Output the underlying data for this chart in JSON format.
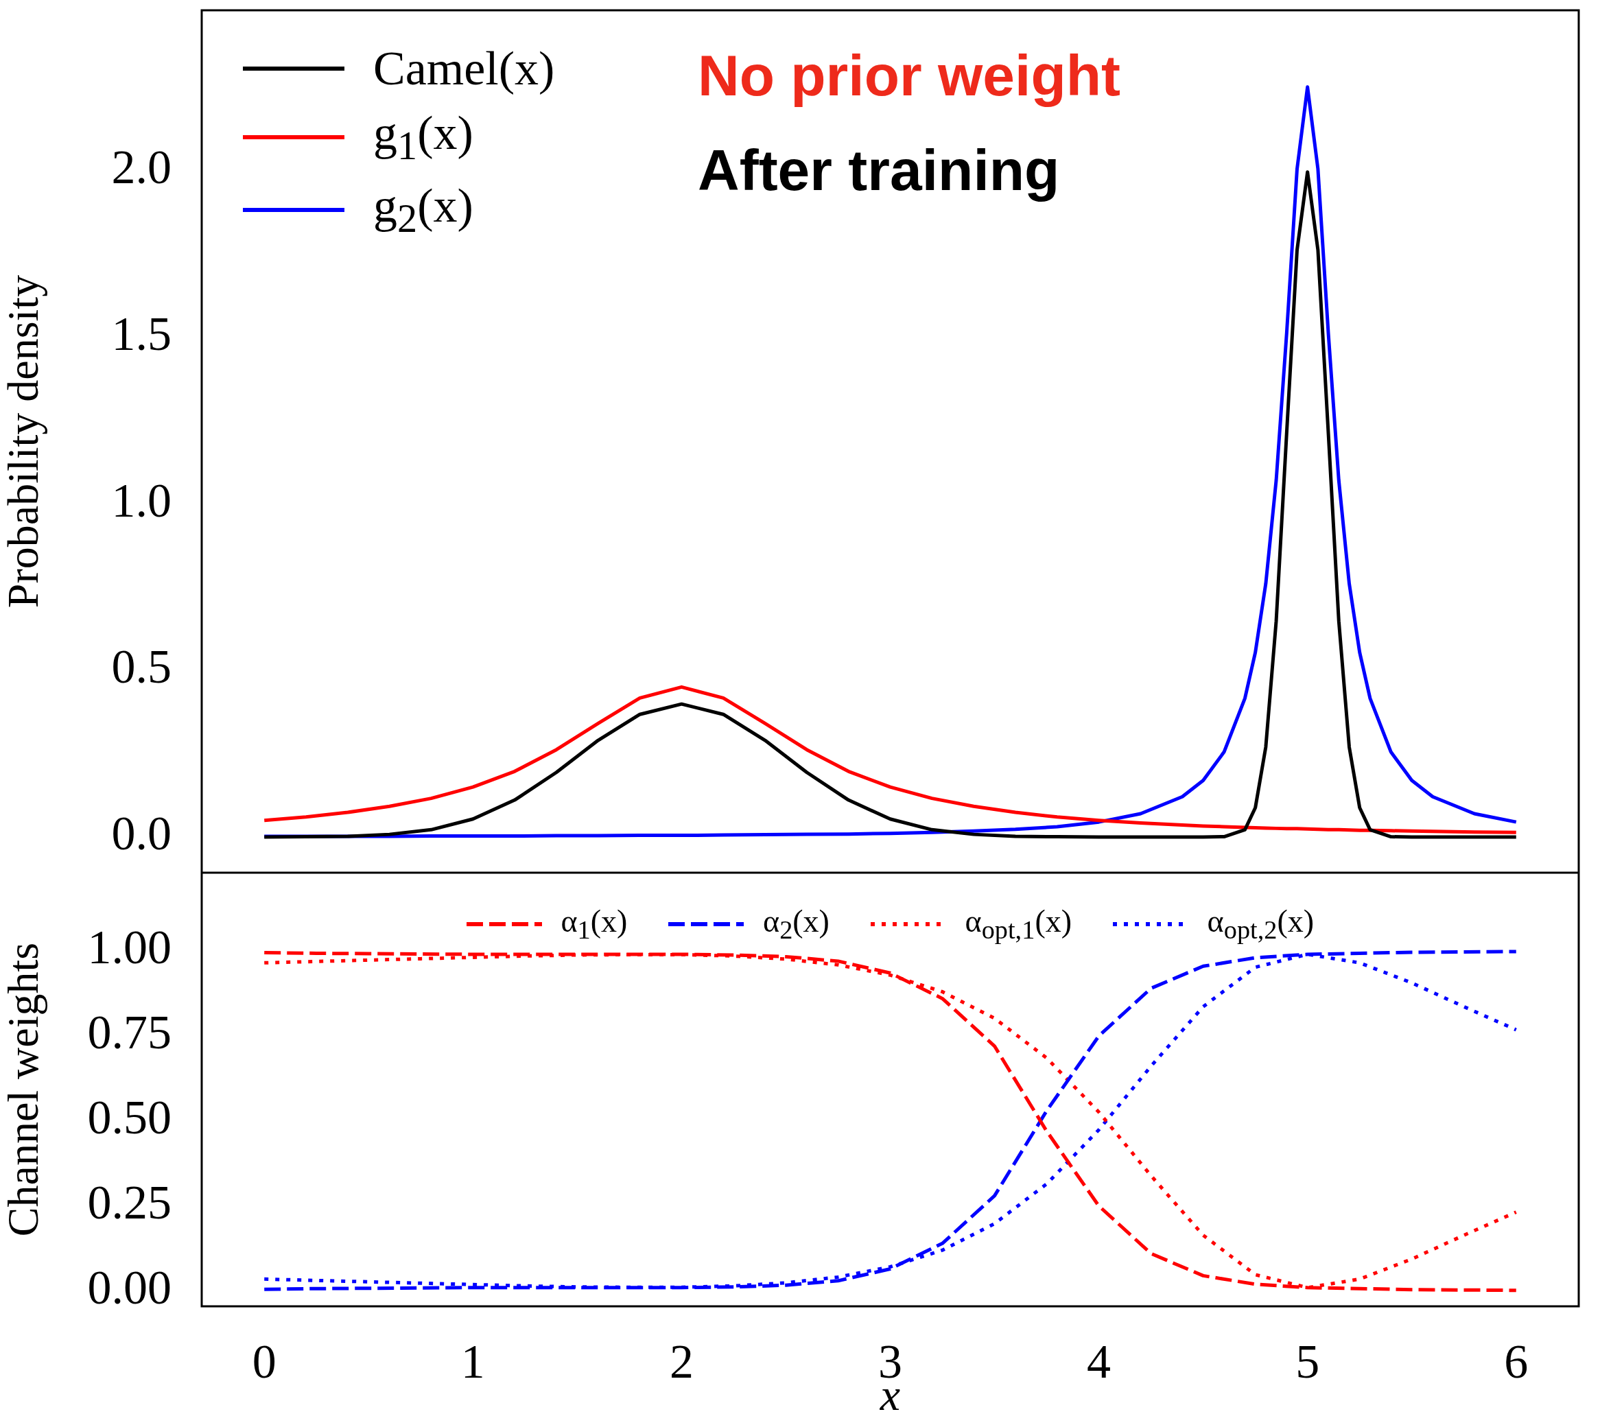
{
  "chart_data": [
    {
      "type": "line",
      "ylabel": "Probability density",
      "legend": "top left",
      "tick_labels": "y",
      "grid": false,
      "marker": "none",
      "annotations": [
        "No prior weight",
        "After training"
      ],
      "xlim": [
        -0.3,
        6.3
      ],
      "ylim": [
        -0.107,
        2.48
      ],
      "xticks": [
        0,
        1,
        2,
        3,
        4,
        5,
        6
      ],
      "yticks": [
        {
          "value": 0,
          "label": "0.0"
        },
        {
          "value": 0.5,
          "label": "0.5"
        },
        {
          "value": 1,
          "label": "1.0"
        },
        {
          "value": 1.5,
          "label": "1.5"
        },
        {
          "value": 2,
          "label": "2.0"
        }
      ],
      "x": [
        0,
        0.2,
        0.4,
        0.6,
        0.8,
        1.0,
        1.2,
        1.4,
        1.6,
        1.8,
        2.0,
        2.2,
        2.4,
        2.6,
        2.8,
        3.0,
        3.2,
        3.4,
        3.6,
        3.8,
        4.0,
        4.2,
        4.4,
        4.5,
        4.6,
        4.7,
        4.75,
        4.8,
        4.85,
        4.9,
        4.95,
        5.0,
        5.05,
        5.1,
        5.15,
        5.2,
        5.25,
        5.3,
        5.4,
        5.5,
        5.6,
        5.8,
        6.0
      ],
      "series": [
        {
          "name": "Camel(x)",
          "color": "#000000",
          "line_style": "solid",
          "values": [
            0.0,
            0.001,
            0.002,
            0.008,
            0.022,
            0.054,
            0.111,
            0.194,
            0.29,
            0.368,
            0.399,
            0.368,
            0.29,
            0.194,
            0.111,
            0.054,
            0.022,
            0.008,
            0.002,
            0.001,
            0.0,
            0,
            0,
            0,
            0.001,
            0.022,
            0.088,
            0.27,
            0.648,
            1.21,
            1.761,
            1.995,
            1.761,
            1.21,
            0.648,
            0.27,
            0.088,
            0.022,
            0.001,
            0,
            0,
            0,
            0
          ]
        },
        {
          "name": "g$_{1}$(x)",
          "color": "#ff0000",
          "line_style": "solid",
          "values": [
            0.05,
            0.06,
            0.074,
            0.092,
            0.116,
            0.15,
            0.197,
            0.262,
            0.341,
            0.417,
            0.45,
            0.417,
            0.341,
            0.262,
            0.197,
            0.15,
            0.116,
            0.092,
            0.074,
            0.06,
            0.05,
            0.042,
            0.036,
            0.033,
            0.031,
            0.029,
            0.028,
            0.027,
            0.026,
            0.025,
            0.025,
            0.024,
            0.023,
            0.022,
            0.022,
            0.021,
            0.02,
            0.02,
            0.019,
            0.018,
            0.017,
            0.015,
            0.014
          ]
        },
        {
          "name": "g$_{2}$(x)",
          "color": "#0000ff",
          "line_style": "solid",
          "values": [
            0.002,
            0.002,
            0.002,
            0.002,
            0.003,
            0.003,
            0.003,
            0.004,
            0.004,
            0.005,
            0.005,
            0.006,
            0.007,
            0.008,
            0.009,
            0.011,
            0.014,
            0.018,
            0.023,
            0.031,
            0.045,
            0.07,
            0.121,
            0.17,
            0.255,
            0.416,
            0.554,
            0.76,
            1.07,
            1.51,
            2.004,
            2.25,
            2.004,
            1.51,
            1.07,
            0.76,
            0.554,
            0.416,
            0.255,
            0.17,
            0.121,
            0.07,
            0.045
          ]
        }
      ]
    },
    {
      "type": "line",
      "xlabel": "x",
      "ylabel": "Channel weights",
      "legend": "top",
      "grid": false,
      "marker": "none",
      "xlim": [
        -0.3,
        6.3
      ],
      "ylim": [
        -0.045,
        1.23
      ],
      "xticks": [
        0,
        1,
        2,
        3,
        4,
        5,
        6
      ],
      "yticks": [
        {
          "value": 0,
          "label": "0.00"
        },
        {
          "value": 0.25,
          "label": "0.25"
        },
        {
          "value": 0.5,
          "label": "0.50"
        },
        {
          "value": 0.75,
          "label": "0.75"
        },
        {
          "value": 1,
          "label": "1.00"
        }
      ],
      "x": [
        0,
        0.25,
        0.5,
        0.75,
        1,
        1.25,
        1.5,
        1.75,
        2,
        2.25,
        2.5,
        2.75,
        3,
        3.25,
        3.5,
        3.75,
        4,
        4.25,
        4.5,
        4.75,
        5,
        5.25,
        5.5,
        5.75,
        6
      ],
      "series": [
        {
          "name": "α$_{1}$(x)",
          "color": "#ff0000",
          "line_style": "dashed",
          "values": [
            0.995,
            0.993,
            0.992,
            0.991,
            0.99,
            0.99,
            0.99,
            0.99,
            0.99,
            0.988,
            0.983,
            0.97,
            0.935,
            0.86,
            0.72,
            0.47,
            0.25,
            0.11,
            0.045,
            0.02,
            0.01,
            0.007,
            0.004,
            0.003,
            0.002
          ]
        },
        {
          "name": "α$_{2}$(x)",
          "color": "#0000ff",
          "line_style": "dashed",
          "values": [
            0.005,
            0.007,
            0.008,
            0.009,
            0.01,
            0.01,
            0.01,
            0.01,
            0.01,
            0.012,
            0.017,
            0.03,
            0.065,
            0.14,
            0.28,
            0.53,
            0.75,
            0.89,
            0.955,
            0.98,
            0.99,
            0.993,
            0.996,
            0.997,
            0.998
          ]
        },
        {
          "name": "α$_{opt,1}$(x)",
          "color": "#ff0000",
          "line_style": "dotted",
          "values": [
            0.965,
            0.969,
            0.973,
            0.977,
            0.981,
            0.985,
            0.988,
            0.989,
            0.989,
            0.985,
            0.976,
            0.959,
            0.929,
            0.88,
            0.802,
            0.685,
            0.526,
            0.339,
            0.164,
            0.048,
            0.01,
            0.035,
            0.094,
            0.164,
            0.232
          ]
        },
        {
          "name": "α$_{opt,2}$(x)",
          "color": "#0000ff",
          "line_style": "dotted",
          "values": [
            0.035,
            0.031,
            0.027,
            0.023,
            0.019,
            0.015,
            0.012,
            0.011,
            0.011,
            0.015,
            0.024,
            0.041,
            0.071,
            0.12,
            0.198,
            0.315,
            0.474,
            0.661,
            0.836,
            0.952,
            0.99,
            0.965,
            0.906,
            0.836,
            0.768
          ]
        }
      ]
    }
  ]
}
